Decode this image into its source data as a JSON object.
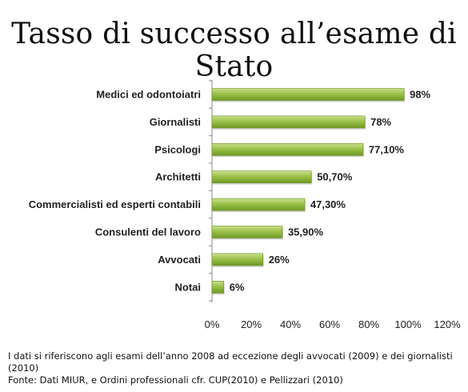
{
  "title": "Tasso di successo all’esame di Stato",
  "chart_data": {
    "type": "bar",
    "orientation": "horizontal",
    "categories": [
      "Medici ed odontoiatri",
      "Giornalisti",
      "Psicologi",
      "Architetti",
      "Commercialisti ed esperti contabili",
      "Consulenti del lavoro",
      "Avvocati",
      "Notai"
    ],
    "values": [
      98,
      78,
      77.1,
      50.7,
      47.3,
      35.9,
      26,
      6
    ],
    "value_labels": [
      "98%",
      "78%",
      "77,10%",
      "50,70%",
      "47,30%",
      "35,90%",
      "26%",
      "6%"
    ],
    "xlim": [
      0,
      120
    ],
    "xticks": [
      "0%",
      "20%",
      "40%",
      "60%",
      "80%",
      "100%",
      "120%"
    ],
    "bar_color": "#8DB43C",
    "grid": false,
    "legend": false
  },
  "notes": {
    "line1": "I dati si riferiscono agli esami dell’anno 2008 ad eccezione degli avvocati (2009) e dei giornalisti (2010)",
    "line2": "Fonte: Dati MIUR, e Ordini professionali cfr. CUP(2010) e Pellizzari (2010)"
  }
}
